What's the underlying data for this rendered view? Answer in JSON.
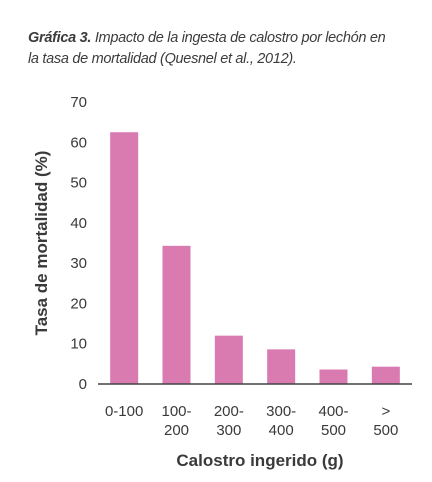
{
  "caption": {
    "lead": "Gráfica 3.",
    "line1": " Impacto de la ingesta de calostro por lechón en",
    "line2": "la tasa de mortalidad (Quesnel et al., 2012)."
  },
  "colors": {
    "bar": "#d97ab1",
    "axis": "#444444",
    "text": "#3a3a3a"
  },
  "chart_data": {
    "type": "bar",
    "categories": [
      [
        "0-100"
      ],
      [
        "100-",
        "200"
      ],
      [
        "200-",
        "300"
      ],
      [
        "300-",
        "400"
      ],
      [
        "400-",
        "500"
      ],
      [
        ">",
        "500"
      ]
    ],
    "values": [
      62.5,
      34.3,
      12.0,
      8.6,
      3.6,
      4.3
    ],
    "xlabel": "Calostro ingerido (g)",
    "ylabel": "Tasa de mortalidad (%)",
    "ylim": [
      0,
      70
    ],
    "yticks": [
      0,
      10,
      20,
      30,
      40,
      50,
      60,
      70
    ],
    "grid": false
  }
}
